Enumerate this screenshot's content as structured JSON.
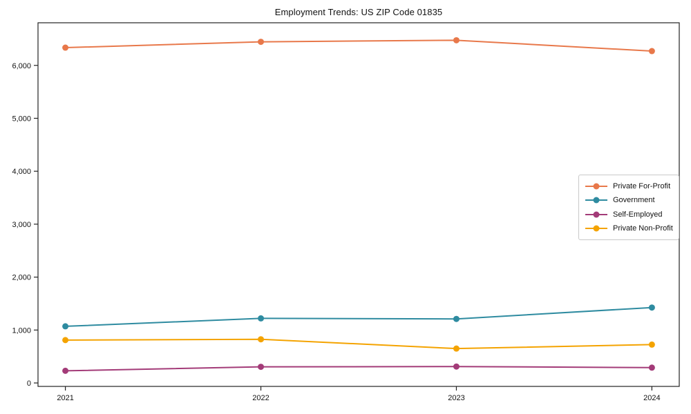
{
  "title": "Employment Trends: US ZIP Code 01835",
  "chart_data": {
    "type": "line",
    "title": "Employment Trends: US ZIP Code 01835",
    "xlabel": "",
    "ylabel": "",
    "x": [
      2021,
      2022,
      2023,
      2024
    ],
    "xtick_labels": [
      "2021",
      "2022",
      "2023",
      "2024"
    ],
    "yticks": [
      0,
      1000,
      2000,
      3000,
      4000,
      5000,
      6000
    ],
    "ytick_labels": [
      "0",
      "1,000",
      "2,000",
      "3,000",
      "4,000",
      "5,000",
      "6,000"
    ],
    "xlim": [
      2020.86,
      2024.14
    ],
    "ylim": [
      -65,
      6805
    ],
    "grid": false,
    "legend_position": "center-right",
    "marker": "circle",
    "series": [
      {
        "name": "Private For-Profit",
        "color": "#E8784A",
        "values": [
          6335,
          6445,
          6475,
          6270
        ]
      },
      {
        "name": "Government",
        "color": "#2E8BA0",
        "values": [
          1070,
          1220,
          1210,
          1425
        ]
      },
      {
        "name": "Self-Employed",
        "color": "#A33B78",
        "values": [
          230,
          305,
          310,
          290
        ]
      },
      {
        "name": "Private Non-Profit",
        "color": "#F4A300",
        "values": [
          810,
          825,
          650,
          725
        ]
      }
    ],
    "colors": {
      "spine": "#222222",
      "tick": "#222222",
      "text": "#111111",
      "legend_border": "#c9c9c9"
    }
  }
}
